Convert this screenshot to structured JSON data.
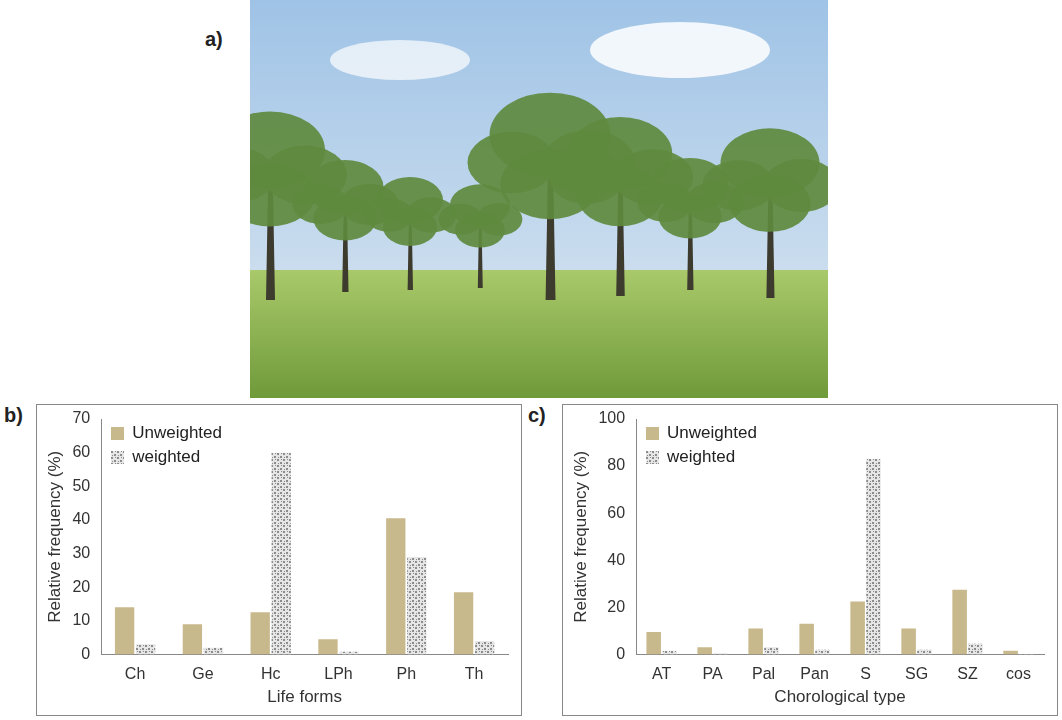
{
  "photo_panel": "a)",
  "chart_data": [
    {
      "type": "bar",
      "panel": "b)",
      "x_label": "Life forms",
      "y_label": "Relative frequency (%)",
      "categories": [
        "Ch",
        "Ge",
        "Hc",
        "LPh",
        "Ph",
        "Th"
      ],
      "series": [
        {
          "name": "Unweighted",
          "color": "#c8b98c",
          "values": [
            14,
            9,
            12.5,
            4.5,
            40.5,
            18.5
          ]
        },
        {
          "name": "weighted",
          "color": "#8c8c8c",
          "values": [
            3,
            2,
            60,
            0.8,
            29,
            4
          ]
        }
      ],
      "ylim": [
        0,
        70
      ],
      "yticks": [
        0,
        10,
        20,
        30,
        40,
        50,
        60,
        70
      ],
      "grid": false,
      "legend": "upper left"
    },
    {
      "type": "bar",
      "panel": "c)",
      "x_label": "Chorological type",
      "y_label": "Relative frequency (%)",
      "categories": [
        "AT",
        "PA",
        "Pal",
        "Pan",
        "S",
        "SG",
        "SZ",
        "cos"
      ],
      "series": [
        {
          "name": "Unweighted",
          "color": "#c8b98c",
          "values": [
            9.5,
            3,
            11,
            13,
            22.5,
            11,
            27.5,
            1.5
          ]
        },
        {
          "name": "weighted",
          "color": "#8c8c8c",
          "values": [
            1.5,
            0.5,
            3,
            2,
            83,
            2,
            4.5,
            0.2
          ]
        }
      ],
      "ylim": [
        0,
        100
      ],
      "yticks": [
        0,
        20,
        40,
        60,
        80,
        100
      ],
      "grid": false,
      "legend": "upper left"
    }
  ]
}
